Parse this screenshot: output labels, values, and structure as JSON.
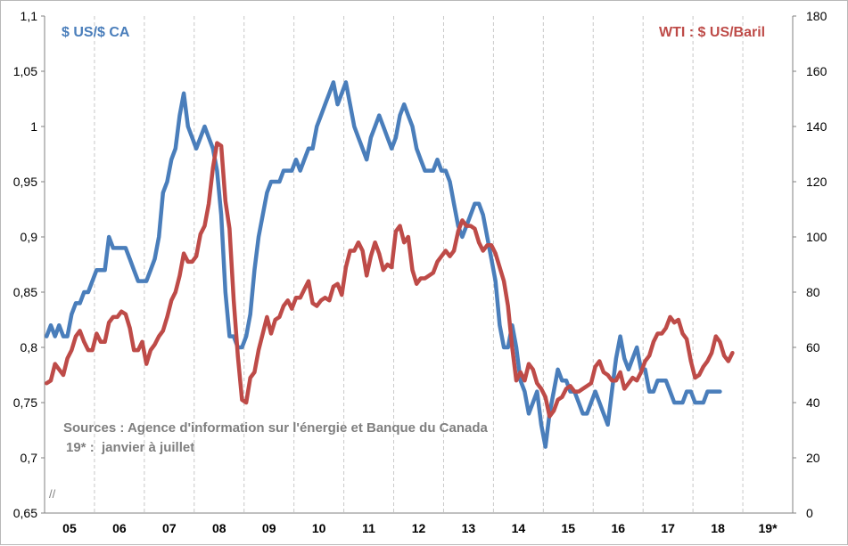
{
  "chart_data": {
    "type": "line",
    "x_labels": [
      "05",
      "06",
      "07",
      "08",
      "09",
      "10",
      "11",
      "12",
      "13",
      "14",
      "15",
      "16",
      "17",
      "18",
      "19*"
    ],
    "left_axis": {
      "ticks": [
        "0,65",
        "0,7",
        "0,75",
        "0,8",
        "0,85",
        "0,9",
        "0,95",
        "1",
        "1,05",
        "1,1"
      ],
      "ylim": [
        0.65,
        1.1
      ]
    },
    "right_axis": {
      "ticks": [
        "0",
        "20",
        "40",
        "60",
        "80",
        "100",
        "120",
        "140",
        "160",
        "180"
      ],
      "ylim": [
        0,
        180
      ]
    },
    "axis_break": "//",
    "notes": [
      "Sources : Agence d'information sur l'énergie et Banque du Canada",
      "19* :  janvier à juillet"
    ],
    "colors": {
      "cad": "#4a7ebb",
      "wti": "#be4b48",
      "note": "#7f7f7f"
    },
    "series": [
      {
        "name": "$ US/$ CA",
        "axis": "left",
        "color": "#4a7ebb",
        "values": [
          0.81,
          0.82,
          0.81,
          0.82,
          0.81,
          0.81,
          0.83,
          0.84,
          0.84,
          0.85,
          0.85,
          0.86,
          0.87,
          0.87,
          0.87,
          0.9,
          0.89,
          0.89,
          0.89,
          0.89,
          0.88,
          0.87,
          0.86,
          0.86,
          0.86,
          0.87,
          0.88,
          0.9,
          0.94,
          0.95,
          0.97,
          0.98,
          1.01,
          1.03,
          1.0,
          0.99,
          0.98,
          0.99,
          1.0,
          0.99,
          0.98,
          0.96,
          0.92,
          0.85,
          0.81,
          0.81,
          0.8,
          0.8,
          0.81,
          0.83,
          0.87,
          0.9,
          0.92,
          0.94,
          0.95,
          0.95,
          0.95,
          0.96,
          0.96,
          0.96,
          0.97,
          0.96,
          0.97,
          0.98,
          0.98,
          1.0,
          1.01,
          1.02,
          1.03,
          1.04,
          1.02,
          1.03,
          1.04,
          1.02,
          1.0,
          0.99,
          0.98,
          0.97,
          0.99,
          1.0,
          1.01,
          1.0,
          0.99,
          0.98,
          0.99,
          1.01,
          1.02,
          1.01,
          1.0,
          0.98,
          0.97,
          0.96,
          0.96,
          0.96,
          0.97,
          0.96,
          0.96,
          0.95,
          0.93,
          0.91,
          0.9,
          0.91,
          0.92,
          0.93,
          0.93,
          0.92,
          0.9,
          0.88,
          0.86,
          0.82,
          0.8,
          0.8,
          0.82,
          0.8,
          0.77,
          0.76,
          0.74,
          0.75,
          0.76,
          0.73,
          0.71,
          0.74,
          0.76,
          0.78,
          0.77,
          0.77,
          0.76,
          0.76,
          0.75,
          0.74,
          0.74,
          0.75,
          0.76,
          0.75,
          0.74,
          0.73,
          0.76,
          0.79,
          0.81,
          0.79,
          0.78,
          0.79,
          0.8,
          0.78,
          0.78,
          0.76,
          0.76,
          0.77,
          0.77,
          0.77,
          0.76,
          0.75,
          0.75,
          0.75,
          0.76,
          0.76,
          0.75,
          0.75,
          0.75,
          0.76,
          0.76,
          0.76,
          0.76
        ]
      },
      {
        "name": "WTI : $ US/Baril",
        "axis": "right",
        "color": "#be4b48",
        "values": [
          47,
          48,
          54,
          52,
          50,
          56,
          59,
          64,
          66,
          62,
          59,
          59,
          65,
          62,
          62,
          69,
          71,
          71,
          73,
          72,
          67,
          59,
          59,
          62,
          54,
          59,
          61,
          64,
          66,
          71,
          77,
          80,
          86,
          94,
          91,
          91,
          93,
          101,
          104,
          112,
          125,
          134,
          133,
          113,
          103,
          77,
          57,
          41,
          40,
          49,
          51,
          59,
          65,
          71,
          65,
          70,
          71,
          75,
          77,
          74,
          78,
          78,
          81,
          84,
          76,
          75,
          77,
          78,
          77,
          82,
          83,
          79,
          89,
          95,
          95,
          98,
          95,
          86,
          93,
          98,
          94,
          88,
          90,
          89,
          102,
          104,
          98,
          100,
          88,
          83,
          85,
          85,
          86,
          87,
          91,
          93,
          95,
          93,
          95,
          102,
          106,
          104,
          104,
          103,
          98,
          95,
          97,
          97,
          94,
          89,
          84,
          75,
          60,
          48,
          51,
          48,
          54,
          52,
          47,
          45,
          42,
          35,
          37,
          41,
          42,
          45,
          46,
          44,
          44,
          45,
          46,
          47,
          53,
          55,
          51,
          50,
          48,
          48,
          51,
          45,
          47,
          49,
          48,
          51,
          55,
          57,
          62,
          65,
          65,
          67,
          71,
          69,
          70,
          65,
          63,
          55,
          49,
          50,
          53,
          55,
          58,
          64,
          62,
          57,
          55,
          58
        ]
      }
    ]
  }
}
